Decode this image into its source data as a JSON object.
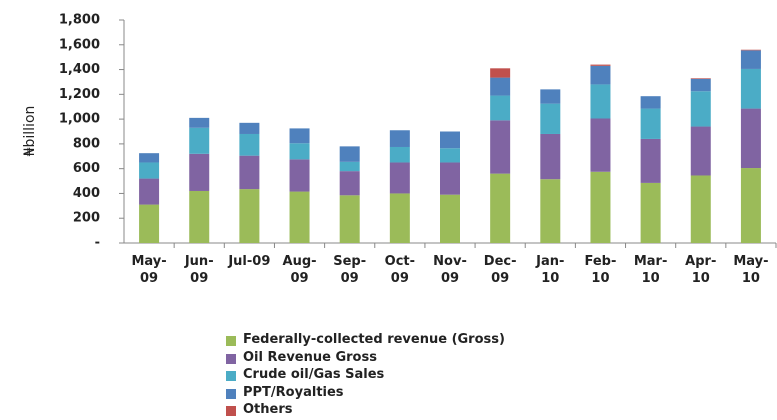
{
  "chart_data": {
    "type": "bar",
    "stacked": true,
    "y_label": "₦billion",
    "categories": [
      "May-09",
      "Jun-09",
      "Jul-09",
      "Aug-09",
      "Sep-09",
      "Oct-09",
      "Nov-09",
      "Dec-09",
      "Jan-10",
      "Feb-10",
      "Mar-10",
      "Apr-10",
      "May-10"
    ],
    "series": [
      {
        "name": "Federally-collected revenue (Gross)",
        "color": "#9bbb59",
        "values": [
          310,
          420,
          435,
          415,
          385,
          400,
          390,
          560,
          515,
          575,
          485,
          545,
          605
        ]
      },
      {
        "name": "Oil Revenue  Gross",
        "color": "#8064a2",
        "values": [
          210,
          300,
          270,
          260,
          195,
          250,
          260,
          430,
          365,
          430,
          355,
          395,
          480
        ]
      },
      {
        "name": "Crude oil/Gas Sales",
        "color": "#4bacc6",
        "values": [
          130,
          210,
          175,
          130,
          75,
          125,
          115,
          200,
          245,
          275,
          245,
          285,
          320
        ]
      },
      {
        "name": "PPT/Royalties",
        "color": "#4f81bd",
        "values": [
          75,
          80,
          90,
          120,
          125,
          135,
          135,
          145,
          115,
          150,
          100,
          100,
          150
        ]
      },
      {
        "name": "Others",
        "color": "#c0504d",
        "values": [
          0,
          0,
          0,
          0,
          0,
          0,
          0,
          75,
          0,
          10,
          0,
          5,
          5
        ]
      }
    ],
    "ylim": [
      0,
      1800
    ],
    "yticks": [
      {
        "value": 0,
        "label": "-"
      },
      200,
      400,
      600,
      800,
      {
        "value": 1000,
        "label": "1,000"
      },
      {
        "value": 1200,
        "label": "1,200"
      },
      {
        "value": 1400,
        "label": "1,400"
      },
      {
        "value": 1600,
        "label": "1,600"
      },
      {
        "value": 1800,
        "label": "1,800"
      }
    ],
    "legend": "bottom"
  }
}
